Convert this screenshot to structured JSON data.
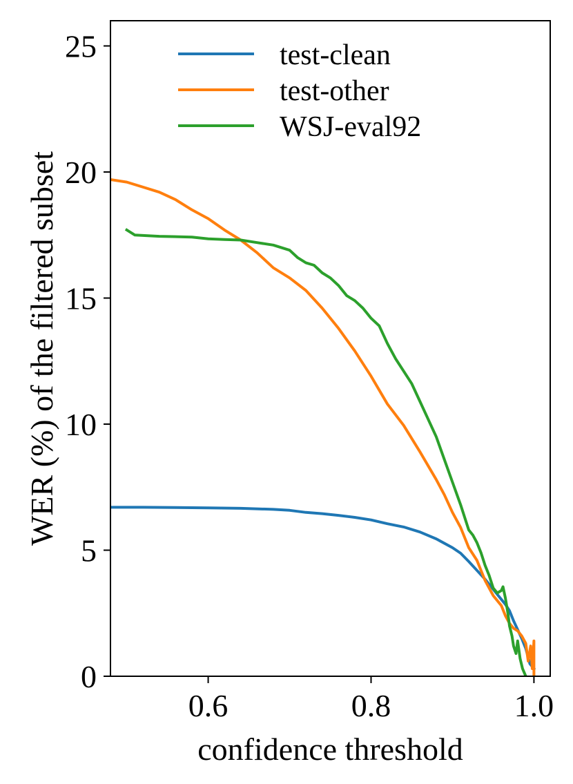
{
  "chart_data": {
    "type": "line",
    "title": "",
    "xlabel": "confidence threshold",
    "ylabel": "WER (%) of the filtered subset",
    "xlim": [
      0.48,
      1.02
    ],
    "ylim": [
      0,
      26
    ],
    "xticks": [
      {
        "value": 0.6,
        "label": "0.6"
      },
      {
        "value": 0.8,
        "label": "0.8"
      },
      {
        "value": 1.0,
        "label": "1.0"
      }
    ],
    "yticks": [
      {
        "value": 0,
        "label": "0"
      },
      {
        "value": 5,
        "label": "5"
      },
      {
        "value": 10,
        "label": "10"
      },
      {
        "value": 15,
        "label": "15"
      },
      {
        "value": 20,
        "label": "20"
      },
      {
        "value": 25,
        "label": "25"
      }
    ],
    "grid": false,
    "legend_position": "top-center",
    "series": [
      {
        "name": "test-clean",
        "color": "#1f77b4",
        "points": [
          [
            0.48,
            6.7
          ],
          [
            0.52,
            6.7
          ],
          [
            0.56,
            6.69
          ],
          [
            0.6,
            6.68
          ],
          [
            0.64,
            6.66
          ],
          [
            0.68,
            6.62
          ],
          [
            0.7,
            6.58
          ],
          [
            0.72,
            6.5
          ],
          [
            0.74,
            6.45
          ],
          [
            0.76,
            6.38
          ],
          [
            0.78,
            6.3
          ],
          [
            0.8,
            6.2
          ],
          [
            0.82,
            6.05
          ],
          [
            0.84,
            5.92
          ],
          [
            0.86,
            5.72
          ],
          [
            0.88,
            5.45
          ],
          [
            0.9,
            5.1
          ],
          [
            0.91,
            4.88
          ],
          [
            0.92,
            4.55
          ],
          [
            0.93,
            4.2
          ],
          [
            0.94,
            3.85
          ],
          [
            0.95,
            3.45
          ],
          [
            0.96,
            3.05
          ],
          [
            0.965,
            2.85
          ],
          [
            0.97,
            2.6
          ],
          [
            0.975,
            2.2
          ],
          [
            0.98,
            1.85
          ],
          [
            0.985,
            1.5
          ],
          [
            0.99,
            1.1
          ],
          [
            0.995,
            0.5
          ],
          [
            1.0,
            0.3
          ]
        ]
      },
      {
        "name": "test-other",
        "color": "#ff7f0e",
        "points": [
          [
            0.48,
            19.7
          ],
          [
            0.5,
            19.6
          ],
          [
            0.52,
            19.4
          ],
          [
            0.54,
            19.2
          ],
          [
            0.56,
            18.9
          ],
          [
            0.58,
            18.5
          ],
          [
            0.6,
            18.15
          ],
          [
            0.62,
            17.7
          ],
          [
            0.64,
            17.3
          ],
          [
            0.66,
            16.8
          ],
          [
            0.68,
            16.2
          ],
          [
            0.7,
            15.8
          ],
          [
            0.72,
            15.3
          ],
          [
            0.74,
            14.6
          ],
          [
            0.76,
            13.8
          ],
          [
            0.78,
            12.9
          ],
          [
            0.8,
            11.9
          ],
          [
            0.82,
            10.8
          ],
          [
            0.84,
            9.95
          ],
          [
            0.86,
            8.9
          ],
          [
            0.88,
            7.8
          ],
          [
            0.89,
            7.2
          ],
          [
            0.9,
            6.5
          ],
          [
            0.91,
            5.9
          ],
          [
            0.92,
            5.1
          ],
          [
            0.93,
            4.6
          ],
          [
            0.94,
            3.8
          ],
          [
            0.95,
            3.2
          ],
          [
            0.96,
            2.8
          ],
          [
            0.965,
            2.4
          ],
          [
            0.97,
            2.1
          ],
          [
            0.975,
            1.9
          ],
          [
            0.98,
            1.8
          ],
          [
            0.985,
            1.6
          ],
          [
            0.99,
            1.3
          ],
          [
            0.993,
            0.6
          ],
          [
            0.996,
            1.2
          ],
          [
            0.998,
            0.3
          ],
          [
            1.0,
            1.4
          ],
          [
            1.0,
            0.0
          ]
        ]
      },
      {
        "name": "WSJ-eval92",
        "color": "#2ca02c",
        "points": [
          [
            0.5,
            17.7
          ],
          [
            0.51,
            17.5
          ],
          [
            0.54,
            17.45
          ],
          [
            0.58,
            17.42
          ],
          [
            0.6,
            17.35
          ],
          [
            0.62,
            17.32
          ],
          [
            0.64,
            17.3
          ],
          [
            0.66,
            17.2
          ],
          [
            0.68,
            17.1
          ],
          [
            0.7,
            16.9
          ],
          [
            0.71,
            16.6
          ],
          [
            0.72,
            16.4
          ],
          [
            0.73,
            16.3
          ],
          [
            0.74,
            16.0
          ],
          [
            0.75,
            15.8
          ],
          [
            0.76,
            15.5
          ],
          [
            0.77,
            15.1
          ],
          [
            0.78,
            14.9
          ],
          [
            0.79,
            14.6
          ],
          [
            0.8,
            14.2
          ],
          [
            0.81,
            13.9
          ],
          [
            0.82,
            13.2
          ],
          [
            0.83,
            12.6
          ],
          [
            0.84,
            12.1
          ],
          [
            0.85,
            11.6
          ],
          [
            0.86,
            10.9
          ],
          [
            0.87,
            10.2
          ],
          [
            0.88,
            9.5
          ],
          [
            0.89,
            8.6
          ],
          [
            0.9,
            7.7
          ],
          [
            0.91,
            6.8
          ],
          [
            0.915,
            6.3
          ],
          [
            0.92,
            5.8
          ],
          [
            0.925,
            5.6
          ],
          [
            0.93,
            5.3
          ],
          [
            0.935,
            4.9
          ],
          [
            0.94,
            4.4
          ],
          [
            0.945,
            4.0
          ],
          [
            0.95,
            3.5
          ],
          [
            0.955,
            3.3
          ],
          [
            0.96,
            3.4
          ],
          [
            0.962,
            3.55
          ],
          [
            0.965,
            3.1
          ],
          [
            0.968,
            2.5
          ],
          [
            0.97,
            2.0
          ],
          [
            0.973,
            1.6
          ],
          [
            0.975,
            1.2
          ],
          [
            0.978,
            0.9
          ],
          [
            0.98,
            1.4
          ],
          [
            0.983,
            0.7
          ],
          [
            0.986,
            0.3
          ],
          [
            0.99,
            0.0
          ]
        ]
      }
    ]
  }
}
